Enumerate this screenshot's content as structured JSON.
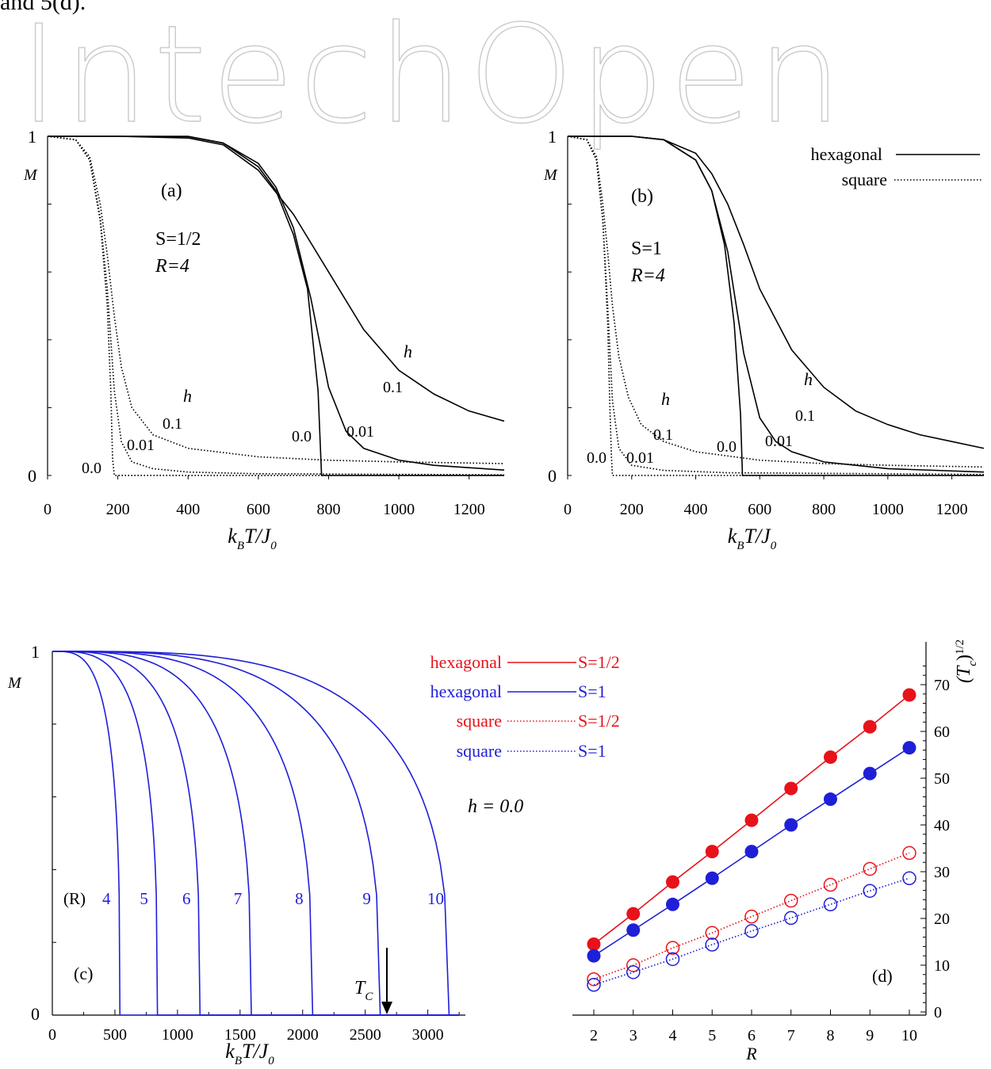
{
  "header": {
    "text": "and 5(d).",
    "watermark": "IntechOpen"
  },
  "chart_data": [
    {
      "id": "a",
      "type": "line",
      "panel_label": "(a)",
      "xlabel": "k_B T/J_0",
      "ylabel": "M",
      "xlim": [
        0,
        1300
      ],
      "ylim": [
        0,
        1
      ],
      "xticks": [
        0,
        200,
        400,
        600,
        800,
        1000,
        1200
      ],
      "yticks": [
        0,
        1
      ],
      "annotations": [
        "S=1/2",
        "R=4",
        "h",
        "h",
        "0.1",
        "0.01",
        "0.0",
        "0.1",
        "0.01",
        "0.0"
      ],
      "series": [
        {
          "lattice": "hexagonal",
          "h": "0.0",
          "style": "solid",
          "x": [
            0,
            200,
            400,
            500,
            600,
            650,
            700,
            740,
            770,
            780,
            790,
            1300
          ],
          "y": [
            1,
            1,
            1,
            0.98,
            0.91,
            0.84,
            0.71,
            0.55,
            0.25,
            0.0,
            0.0,
            0.0
          ]
        },
        {
          "lattice": "hexagonal",
          "h": "0.01",
          "style": "solid",
          "x": [
            0,
            200,
            400,
            500,
            600,
            650,
            700,
            750,
            800,
            850,
            900,
            1000,
            1100,
            1300
          ],
          "y": [
            1,
            1,
            0.999,
            0.98,
            0.92,
            0.85,
            0.73,
            0.52,
            0.26,
            0.13,
            0.08,
            0.045,
            0.03,
            0.016
          ]
        },
        {
          "lattice": "hexagonal",
          "h": "0.1",
          "style": "solid",
          "x": [
            0,
            200,
            400,
            500,
            600,
            700,
            800,
            900,
            1000,
            1100,
            1200,
            1300
          ],
          "y": [
            1,
            1,
            0.995,
            0.975,
            0.9,
            0.77,
            0.6,
            0.43,
            0.31,
            0.24,
            0.19,
            0.16
          ]
        },
        {
          "lattice": "square",
          "h": "0.0",
          "style": "dotted",
          "x": [
            0,
            80,
            120,
            150,
            170,
            180,
            185,
            190,
            1300
          ],
          "y": [
            1,
            0.99,
            0.93,
            0.75,
            0.5,
            0.25,
            0.05,
            0.0,
            0.0
          ]
        },
        {
          "lattice": "square",
          "h": "0.01",
          "style": "dotted",
          "x": [
            0,
            80,
            120,
            150,
            170,
            190,
            210,
            240,
            300,
            400,
            600,
            1300
          ],
          "y": [
            1,
            0.99,
            0.93,
            0.76,
            0.55,
            0.25,
            0.1,
            0.04,
            0.02,
            0.01,
            0.005,
            0.002
          ]
        },
        {
          "lattice": "square",
          "h": "0.1",
          "style": "dotted",
          "x": [
            0,
            80,
            120,
            150,
            170,
            190,
            210,
            240,
            300,
            400,
            600,
            800,
            1000,
            1300
          ],
          "y": [
            1,
            0.99,
            0.94,
            0.8,
            0.65,
            0.47,
            0.32,
            0.2,
            0.12,
            0.08,
            0.055,
            0.045,
            0.04,
            0.035
          ]
        }
      ]
    },
    {
      "id": "b",
      "type": "line",
      "panel_label": "(b)",
      "xlabel": "k_B T/J_0",
      "ylabel": "M",
      "xlim": [
        0,
        1300
      ],
      "ylim": [
        0,
        1
      ],
      "xticks": [
        0,
        200,
        400,
        600,
        800,
        1000,
        1200
      ],
      "yticks": [
        0,
        1
      ],
      "annotations": [
        "S=1",
        "R=4",
        "h",
        "h",
        "0.1",
        "0.01",
        "0.0",
        "0.1",
        "0.01",
        "0.0"
      ],
      "legend": {
        "position": "top-right",
        "entries": [
          {
            "label": "hexagonal",
            "style": "solid"
          },
          {
            "label": "square",
            "style": "dotted"
          }
        ]
      },
      "series": [
        {
          "lattice": "hexagonal",
          "h": "0.0",
          "style": "solid",
          "x": [
            0,
            200,
            300,
            400,
            450,
            490,
            520,
            540,
            546,
            550,
            1300
          ],
          "y": [
            1,
            1,
            0.99,
            0.93,
            0.84,
            0.68,
            0.45,
            0.18,
            0.0,
            0.0,
            0.0
          ]
        },
        {
          "lattice": "hexagonal",
          "h": "0.01",
          "style": "solid",
          "x": [
            0,
            200,
            300,
            400,
            450,
            500,
            550,
            600,
            650,
            700,
            800,
            900,
            1000,
            1300
          ],
          "y": [
            1,
            1,
            0.99,
            0.93,
            0.84,
            0.66,
            0.36,
            0.17,
            0.1,
            0.07,
            0.04,
            0.03,
            0.02,
            0.01
          ]
        },
        {
          "lattice": "hexagonal",
          "h": "0.1",
          "style": "solid",
          "x": [
            0,
            200,
            300,
            400,
            450,
            500,
            550,
            600,
            700,
            800,
            900,
            1000,
            1100,
            1200,
            1300
          ],
          "y": [
            1,
            1,
            0.99,
            0.95,
            0.89,
            0.8,
            0.68,
            0.55,
            0.37,
            0.26,
            0.19,
            0.15,
            0.12,
            0.1,
            0.08
          ]
        },
        {
          "lattice": "square",
          "h": "0.0",
          "style": "dotted",
          "x": [
            0,
            60,
            90,
            110,
            125,
            132,
            137,
            140,
            1300
          ],
          "y": [
            1,
            0.99,
            0.93,
            0.75,
            0.45,
            0.2,
            0.05,
            0.0,
            0.0
          ]
        },
        {
          "lattice": "square",
          "h": "0.01",
          "style": "dotted",
          "x": [
            0,
            60,
            90,
            110,
            125,
            140,
            160,
            200,
            300,
            500,
            1300
          ],
          "y": [
            1,
            0.99,
            0.93,
            0.75,
            0.5,
            0.22,
            0.08,
            0.03,
            0.015,
            0.008,
            0.003
          ]
        },
        {
          "lattice": "square",
          "h": "0.1",
          "style": "dotted",
          "x": [
            0,
            60,
            90,
            110,
            125,
            140,
            160,
            190,
            230,
            300,
            400,
            600,
            800,
            1000,
            1300
          ],
          "y": [
            1,
            0.99,
            0.94,
            0.8,
            0.66,
            0.5,
            0.35,
            0.23,
            0.15,
            0.1,
            0.07,
            0.045,
            0.035,
            0.03,
            0.025
          ]
        }
      ]
    },
    {
      "id": "c",
      "type": "line",
      "panel_label": "(c)",
      "xlabel": "k_B T/J_0",
      "ylabel": "M",
      "xlim": [
        0,
        3300
      ],
      "ylim": [
        0,
        1
      ],
      "xticks": [
        0,
        500,
        1000,
        1500,
        2000,
        2500,
        3000
      ],
      "yticks": [
        0,
        1
      ],
      "annotations": [
        "(R)",
        "h = 0.0",
        "T_C"
      ],
      "series": [
        {
          "name": "4",
          "style": "solid",
          "color": "#1f1fd8",
          "Tc": 540
        },
        {
          "name": "5",
          "style": "solid",
          "color": "#1f1fd8",
          "Tc": 840
        },
        {
          "name": "6",
          "style": "solid",
          "color": "#1f1fd8",
          "Tc": 1180
        },
        {
          "name": "7",
          "style": "solid",
          "color": "#1f1fd8",
          "Tc": 1590
        },
        {
          "name": "8",
          "style": "solid",
          "color": "#1f1fd8",
          "Tc": 2080
        },
        {
          "name": "9",
          "style": "solid",
          "color": "#1f1fd8",
          "Tc": 2620
        },
        {
          "name": "10",
          "style": "solid",
          "color": "#1f1fd8",
          "Tc": 3170
        }
      ]
    },
    {
      "id": "d",
      "type": "scatter",
      "panel_label": "(d)",
      "xlabel": "R",
      "ylabel": "(T_c)^1/2",
      "xlim": [
        1.6,
        10.3
      ],
      "ylim": [
        0,
        75
      ],
      "xticks": [
        2,
        3,
        4,
        5,
        6,
        7,
        8,
        9,
        10
      ],
      "yticks": [
        0,
        10,
        20,
        30,
        40,
        50,
        60,
        70
      ],
      "x": [
        2,
        3,
        4,
        5,
        6,
        7,
        8,
        9,
        10
      ],
      "legend": {
        "position": "top-left",
        "entries": [
          {
            "lattice": "hexagonal",
            "spin": "S=1/2",
            "color": "#e8121a",
            "style": "solid"
          },
          {
            "lattice": "hexagonal",
            "spin": "S=1",
            "color": "#1f1fd8",
            "style": "solid"
          },
          {
            "lattice": "square",
            "spin": "S=1/2",
            "color": "#e8121a",
            "style": "dotted"
          },
          {
            "lattice": "square",
            "spin": "S=1",
            "color": "#1f1fd8",
            "style": "dotted"
          }
        ]
      },
      "series": [
        {
          "lattice": "hexagonal",
          "spin": "S=1/2",
          "color": "#e8121a",
          "style": "solid",
          "marker": "filled",
          "values": [
            14.5,
            21.0,
            27.8,
            34.3,
            41.0,
            47.8,
            54.5,
            61.0,
            67.8
          ]
        },
        {
          "lattice": "hexagonal",
          "spin": "S=1",
          "color": "#1f1fd8",
          "style": "solid",
          "marker": "filled",
          "values": [
            12.0,
            17.5,
            23.0,
            28.6,
            34.3,
            40.0,
            45.5,
            51.0,
            56.5
          ]
        },
        {
          "lattice": "square",
          "spin": "S=1/2",
          "color": "#e8121a",
          "style": "dotted",
          "marker": "open",
          "values": [
            7.0,
            10.0,
            13.7,
            16.9,
            20.4,
            23.8,
            27.2,
            30.6,
            34.0
          ]
        },
        {
          "lattice": "square",
          "spin": "S=1",
          "color": "#1f1fd8",
          "style": "dotted",
          "marker": "open",
          "values": [
            5.8,
            8.5,
            11.3,
            14.4,
            17.3,
            20.1,
            23.0,
            25.9,
            28.6
          ]
        }
      ]
    }
  ],
  "text": {
    "h_value": "h = 0.0",
    "tc": "T",
    "tc_sub": "C",
    "R_label": "(R)"
  }
}
